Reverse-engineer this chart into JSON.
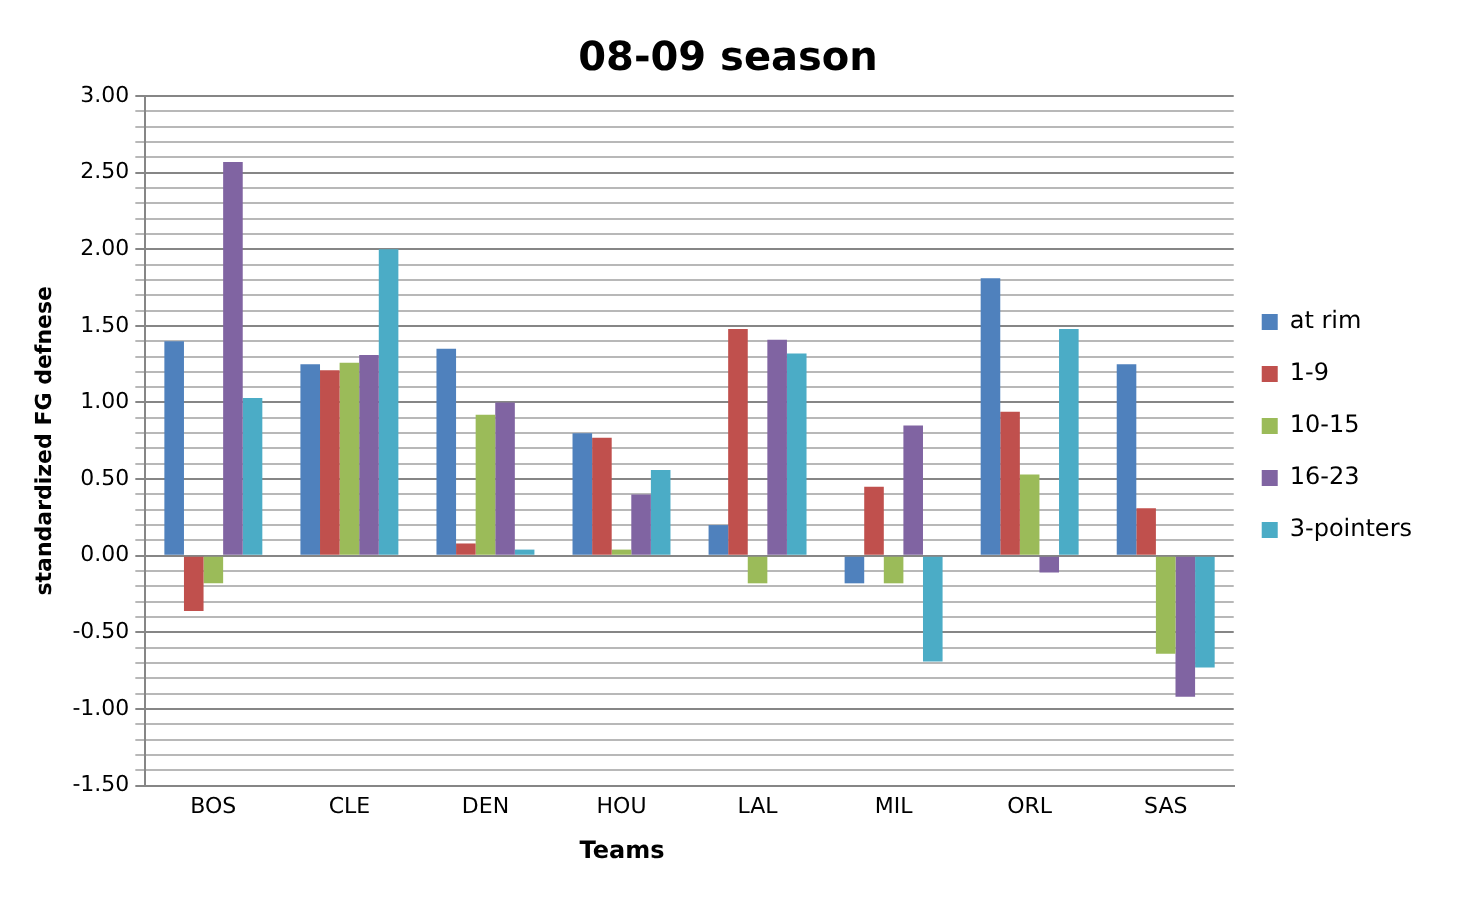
{
  "chart_data": {
    "type": "bar",
    "title": "08-09 season",
    "xlabel": "Teams",
    "ylabel": "standardized FG defnese",
    "categories": [
      "BOS",
      "CLE",
      "DEN",
      "HOU",
      "LAL",
      "MIL",
      "ORL",
      "SAS"
    ],
    "series": [
      {
        "name": "at rim",
        "color": "#4f81bd",
        "values": [
          1.4,
          1.25,
          1.35,
          0.8,
          0.2,
          -0.18,
          1.81,
          1.25
        ]
      },
      {
        "name": "1-9",
        "color": "#c0504d",
        "values": [
          -0.36,
          1.21,
          0.08,
          0.77,
          1.48,
          0.45,
          0.94,
          0.31
        ]
      },
      {
        "name": "10-15",
        "color": "#9bbb59",
        "values": [
          -0.18,
          1.26,
          0.92,
          0.04,
          -0.18,
          -0.18,
          0.53,
          -0.64
        ]
      },
      {
        "name": "16-23",
        "color": "#8064a2",
        "values": [
          2.57,
          1.31,
          1.0,
          0.4,
          1.41,
          0.85,
          -0.11,
          -0.92
        ]
      },
      {
        "name": "3-pointers",
        "color": "#4bacc6",
        "values": [
          1.03,
          2.0,
          0.04,
          0.56,
          1.32,
          -0.69,
          1.48,
          -0.73
        ]
      }
    ],
    "ylim": [
      -1.5,
      3
    ],
    "yticks": [
      {
        "value": -1.5,
        "label": "-1.50"
      },
      {
        "value": -1.4,
        "label": null
      },
      {
        "value": -1.3,
        "label": null
      },
      {
        "value": -1.2,
        "label": null
      },
      {
        "value": -1.1,
        "label": null
      },
      {
        "value": -1,
        "label": "-1.00"
      },
      {
        "value": -0.9,
        "label": null
      },
      {
        "value": -0.8,
        "label": null
      },
      {
        "value": -0.7,
        "label": null
      },
      {
        "value": -0.6,
        "label": null
      },
      {
        "value": -0.5,
        "label": "-0.50"
      },
      {
        "value": -0.4,
        "label": null
      },
      {
        "value": -0.3,
        "label": null
      },
      {
        "value": -0.2,
        "label": null
      },
      {
        "value": -0.1,
        "label": null
      },
      {
        "value": 0,
        "label": "0.00"
      },
      {
        "value": 0.1,
        "label": null
      },
      {
        "value": 0.2,
        "label": null
      },
      {
        "value": 0.3,
        "label": null
      },
      {
        "value": 0.4,
        "label": null
      },
      {
        "value": 0.5,
        "label": "0.50"
      },
      {
        "value": 0.6,
        "label": null
      },
      {
        "value": 0.7,
        "label": null
      },
      {
        "value": 0.8,
        "label": null
      },
      {
        "value": 0.9,
        "label": null
      },
      {
        "value": 1,
        "label": "1.00"
      },
      {
        "value": 1.1,
        "label": null
      },
      {
        "value": 1.2,
        "label": null
      },
      {
        "value": 1.3,
        "label": null
      },
      {
        "value": 1.4,
        "label": null
      },
      {
        "value": 1.5,
        "label": "1.50"
      },
      {
        "value": 1.6,
        "label": null
      },
      {
        "value": 1.7,
        "label": null
      },
      {
        "value": 1.8,
        "label": null
      },
      {
        "value": 1.9,
        "label": null
      },
      {
        "value": 2,
        "label": "2.00"
      },
      {
        "value": 2.1,
        "label": null
      },
      {
        "value": 2.2,
        "label": null
      },
      {
        "value": 2.3,
        "label": null
      },
      {
        "value": 2.4,
        "label": null
      },
      {
        "value": 2.5,
        "label": "2.50"
      },
      {
        "value": 2.6,
        "label": null
      },
      {
        "value": 2.7,
        "label": null
      },
      {
        "value": 2.8,
        "label": null
      },
      {
        "value": 2.9,
        "label": null
      },
      {
        "value": 3,
        "label": "3.00"
      }
    ],
    "grid": "y",
    "legend": "right"
  }
}
